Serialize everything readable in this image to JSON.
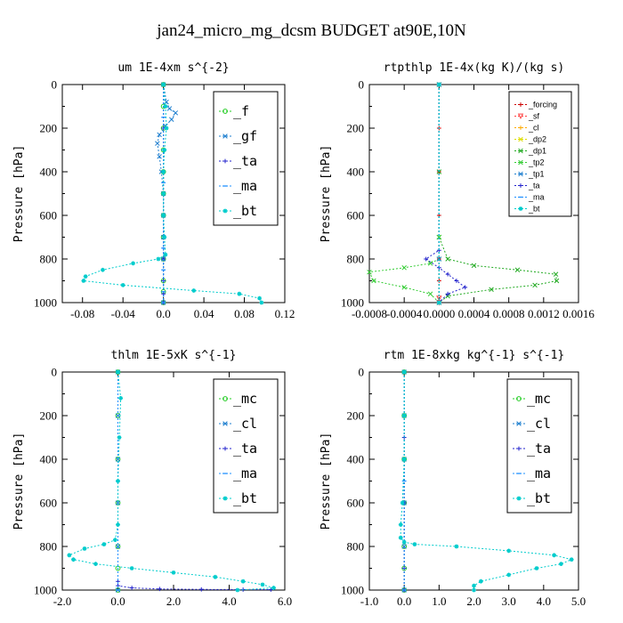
{
  "figure": {
    "title": "jan24_micro_mg_dcsm  BUDGET at90E,10N"
  },
  "chart_data": [
    {
      "type": "line",
      "title": "um   1E-4xm s^{-2}",
      "ylabel": "Pressure [hPa]",
      "xlabel": "",
      "xlim": [
        -0.1,
        0.12
      ],
      "ylim": [
        1000,
        0
      ],
      "xticks": [
        -0.08,
        -0.04,
        0.0,
        0.04,
        0.08,
        0.12
      ],
      "xticklabels": [
        "-0.08",
        "-0.04",
        "0.0",
        "0.04",
        "0.08",
        "0.12"
      ],
      "yticks": [
        0,
        200,
        400,
        600,
        800,
        1000
      ],
      "yticklabels": [
        "0",
        "200",
        "400",
        "600",
        "800",
        "1000"
      ],
      "legend": "top-right",
      "series": [
        {
          "name": "_f",
          "color": "#22cc22",
          "marker": "o",
          "x": [
            0,
            0,
            0,
            0,
            0,
            0,
            0,
            0,
            0,
            0,
            0,
            0
          ],
          "y": [
            0,
            100,
            200,
            300,
            400,
            500,
            600,
            700,
            800,
            900,
            950,
            1000
          ]
        },
        {
          "name": "_gf",
          "color": "#1e7fcf",
          "marker": "x",
          "x": [
            0.0,
            0.003,
            0.006,
            0.012,
            0.008,
            0.002,
            -0.004,
            -0.006,
            -0.004,
            -0.002,
            0.0,
            0.0,
            0.0,
            0.0,
            0.0
          ],
          "y": [
            0,
            80,
            110,
            130,
            160,
            190,
            230,
            270,
            330,
            400,
            500,
            600,
            700,
            800,
            1000
          ]
        },
        {
          "name": "_ta",
          "color": "#2222cc",
          "marker": "+",
          "x": [
            0,
            0,
            0,
            0,
            0,
            0,
            0,
            0
          ],
          "y": [
            0,
            200,
            400,
            600,
            800,
            900,
            960,
            1000
          ]
        },
        {
          "name": "_ma",
          "color": "#1e90ff",
          "marker": "-",
          "x": [
            0,
            0,
            0,
            0,
            0,
            0,
            0,
            0,
            0
          ],
          "y": [
            0,
            150,
            300,
            450,
            600,
            750,
            850,
            950,
            1000
          ]
        },
        {
          "name": "_bt",
          "color": "#00cccc",
          "marker": "*",
          "x": [
            0.0,
            0.002,
            0.003,
            0.001,
            0.0,
            0.0,
            0.0,
            0.001,
            0.002,
            -0.005,
            -0.03,
            -0.06,
            -0.077,
            -0.079,
            -0.04,
            0.03,
            0.075,
            0.095,
            0.097
          ],
          "y": [
            0,
            100,
            200,
            300,
            400,
            500,
            600,
            700,
            780,
            800,
            820,
            850,
            880,
            900,
            920,
            945,
            960,
            980,
            1000
          ]
        }
      ]
    },
    {
      "type": "line",
      "title": "rtpthlp   1E-4x(kg K)/(kg s)",
      "ylabel": "Pressure [hPa]",
      "xlabel": "",
      "xlim": [
        -0.0008,
        0.0016
      ],
      "ylim": [
        1000,
        0
      ],
      "xticks": [
        -0.0008,
        -0.0004,
        0.0,
        0.0004,
        0.0008,
        0.0012,
        0.0016
      ],
      "xticklabels": [
        "-0.0008",
        "-0.0004",
        "0.0000",
        "0.0004",
        "0.0008",
        "0.0012",
        "0.0016"
      ],
      "yticks": [
        0,
        200,
        400,
        600,
        800,
        1000
      ],
      "yticklabels": [
        "0",
        "200",
        "400",
        "600",
        "800",
        "1000"
      ],
      "legend": "top-right",
      "series": [
        {
          "name": "_forcing",
          "color": "#cc0000",
          "marker": "+",
          "x": [
            0,
            0,
            0,
            0,
            0,
            0,
            0
          ],
          "y": [
            0,
            200,
            400,
            600,
            800,
            900,
            1000
          ]
        },
        {
          "name": "_sf",
          "color": "#ff4444",
          "marker": "v",
          "x": [
            0,
            0
          ],
          "y": [
            980,
            1000
          ]
        },
        {
          "name": "_cl",
          "color": "#ffaa00",
          "marker": "+",
          "x": [
            0,
            0
          ],
          "y": [
            0,
            1000
          ]
        },
        {
          "name": "_dp2",
          "color": "#dddd00",
          "marker": "x",
          "x": [
            0,
            0
          ],
          "y": [
            0,
            1000
          ]
        },
        {
          "name": "_dp1",
          "color": "#22aa22",
          "marker": "x",
          "x": [
            0.0,
            0.0,
            0.0,
            0.0001,
            0.0004,
            0.0009,
            0.00134,
            0.00135,
            0.0011,
            0.0006,
            0.0001,
            0.0
          ],
          "y": [
            0,
            400,
            700,
            800,
            830,
            850,
            870,
            900,
            920,
            940,
            970,
            1000
          ]
        },
        {
          "name": "_tp2",
          "color": "#33cc33",
          "marker": "x",
          "x": [
            0.0,
            0.0,
            0.0,
            -0.0001,
            -0.0004,
            -0.0008,
            -0.00075,
            -0.0004,
            -0.0001,
            0.0
          ],
          "y": [
            0,
            700,
            800,
            820,
            840,
            860,
            900,
            930,
            960,
            1000
          ]
        },
        {
          "name": "_tp1",
          "color": "#1e7fcf",
          "marker": "x",
          "x": [
            0,
            0,
            0
          ],
          "y": [
            0,
            800,
            1000
          ]
        },
        {
          "name": "_ta",
          "color": "#2222cc",
          "marker": "+",
          "x": [
            0.0,
            0.0,
            -0.00015,
            0.0,
            0.0001,
            0.0002,
            0.0003,
            0.0001,
            0.0
          ],
          "y": [
            0,
            760,
            800,
            840,
            870,
            900,
            930,
            960,
            1000
          ]
        },
        {
          "name": "_ma",
          "color": "#1e90ff",
          "marker": "-",
          "x": [
            0,
            0
          ],
          "y": [
            0,
            1000
          ]
        },
        {
          "name": "_bt",
          "color": "#00cccc",
          "marker": "*",
          "x": [
            0,
            0
          ],
          "y": [
            0,
            1000
          ]
        }
      ]
    },
    {
      "type": "line",
      "title": "thlm   1E-5xK s^{-1}",
      "ylabel": "Pressure [hPa]",
      "xlabel": "",
      "xlim": [
        -2.0,
        6.0
      ],
      "ylim": [
        1000,
        0
      ],
      "xticks": [
        -2.0,
        0.0,
        2.0,
        4.0,
        6.0
      ],
      "xticklabels": [
        "-2.0",
        "0.0",
        "2.0",
        "4.0",
        "6.0"
      ],
      "yticks": [
        0,
        200,
        400,
        600,
        800,
        1000
      ],
      "yticklabels": [
        "0",
        "200",
        "400",
        "600",
        "800",
        "1000"
      ],
      "legend": "top-right",
      "series": [
        {
          "name": "_mc",
          "color": "#22cc22",
          "marker": "o",
          "x": [
            0,
            0,
            0,
            0,
            0,
            0,
            0
          ],
          "y": [
            0,
            200,
            400,
            600,
            800,
            900,
            1000
          ]
        },
        {
          "name": "_cl",
          "color": "#1e7fcf",
          "marker": "x",
          "x": [
            0,
            0,
            0,
            0,
            0,
            0
          ],
          "y": [
            0,
            200,
            400,
            600,
            800,
            1000
          ]
        },
        {
          "name": "_ta",
          "color": "#2222cc",
          "marker": "+",
          "x": [
            0.0,
            0.0,
            0.5,
            1.5,
            3.0,
            4.5,
            5.5
          ],
          "y": [
            960,
            980,
            990,
            995,
            997,
            998,
            998
          ]
        },
        {
          "name": "_ma",
          "color": "#1e90ff",
          "marker": "-",
          "x": [
            0,
            0,
            0
          ],
          "y": [
            0,
            500,
            1000
          ]
        },
        {
          "name": "_bt",
          "color": "#00cccc",
          "marker": "*",
          "x": [
            0.0,
            0.1,
            0.05,
            0.0,
            0.0,
            -0.1,
            -0.5,
            -1.2,
            -1.75,
            -1.6,
            -0.8,
            0.5,
            2.0,
            3.5,
            4.5,
            5.2,
            5.6,
            4.3
          ],
          "y": [
            0,
            120,
            300,
            500,
            700,
            770,
            790,
            810,
            840,
            860,
            880,
            900,
            920,
            940,
            960,
            975,
            990,
            1000
          ]
        }
      ]
    },
    {
      "type": "line",
      "title": "rtm   1E-8xkg kg^{-1} s^{-1}",
      "ylabel": "Pressure [hPa]",
      "xlabel": "",
      "xlim": [
        -1.0,
        5.0
      ],
      "ylim": [
        1000,
        0
      ],
      "xticks": [
        -1.0,
        0.0,
        1.0,
        2.0,
        3.0,
        4.0,
        5.0
      ],
      "xticklabels": [
        "-1.0",
        "0.0",
        "1.0",
        "2.0",
        "3.0",
        "4.0",
        "5.0"
      ],
      "yticks": [
        0,
        200,
        400,
        600,
        800,
        1000
      ],
      "yticklabels": [
        "0",
        "200",
        "400",
        "600",
        "800",
        "1000"
      ],
      "legend": "top-right",
      "series": [
        {
          "name": "_mc",
          "color": "#22cc22",
          "marker": "o",
          "x": [
            0,
            0,
            0,
            0,
            0,
            0,
            0
          ],
          "y": [
            0,
            200,
            400,
            600,
            800,
            900,
            1000
          ]
        },
        {
          "name": "_cl",
          "color": "#1e7fcf",
          "marker": "x",
          "x": [
            0,
            0,
            0,
            0,
            0,
            0
          ],
          "y": [
            0,
            200,
            400,
            600,
            800,
            1000
          ]
        },
        {
          "name": "_ta",
          "color": "#2222cc",
          "marker": "+",
          "x": [
            0,
            0,
            0,
            0,
            0
          ],
          "y": [
            0,
            300,
            600,
            900,
            1000
          ]
        },
        {
          "name": "_ma",
          "color": "#1e90ff",
          "marker": "-",
          "x": [
            0,
            0,
            0
          ],
          "y": [
            0,
            500,
            1000
          ]
        },
        {
          "name": "_bt",
          "color": "#00cccc",
          "marker": "*",
          "x": [
            0.0,
            0.0,
            0.0,
            -0.05,
            -0.1,
            -0.1,
            0.0,
            0.3,
            1.5,
            3.0,
            4.3,
            4.8,
            4.5,
            3.8,
            3.0,
            2.2,
            2.0,
            2.0
          ],
          "y": [
            0,
            200,
            400,
            600,
            700,
            760,
            780,
            790,
            800,
            820,
            840,
            860,
            880,
            900,
            930,
            960,
            980,
            1000
          ]
        }
      ]
    }
  ]
}
